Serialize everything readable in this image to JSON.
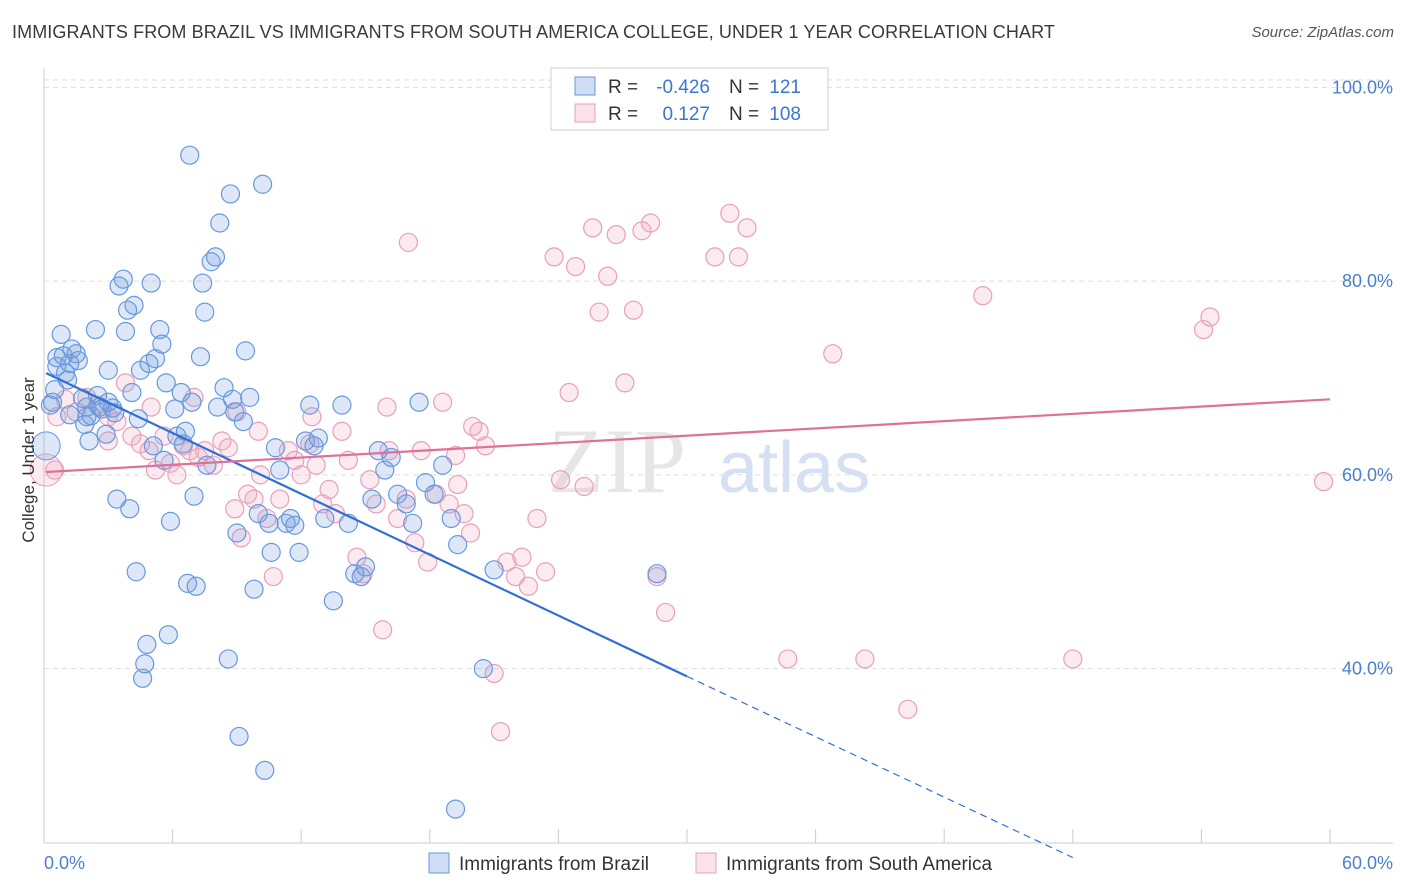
{
  "title": "IMMIGRANTS FROM BRAZIL VS IMMIGRANTS FROM SOUTH AMERICA COLLEGE, UNDER 1 YEAR CORRELATION CHART",
  "source": "Source: ZipAtlas.com",
  "watermark": {
    "zip": "ZIP",
    "atlas": "atlas"
  },
  "colors": {
    "blue": "#6699dd",
    "blue_line": "#2f6fd6",
    "blue_fill": "rgba(120,160,225,0.25)",
    "pink": "#e8a0b8",
    "pink_line": "#e0709a",
    "pink_fill": "rgba(240,170,195,0.25)",
    "axis_label": "#4a7fd0",
    "grid": "#dddddd"
  },
  "stats": [
    {
      "r_label": "R =",
      "r": "-0.426",
      "n_label": "N =",
      "n": "121"
    },
    {
      "r_label": "R =",
      "r": "0.127",
      "n_label": "N =",
      "n": "108"
    }
  ],
  "chart_data": {
    "type": "scatter",
    "title": "IMMIGRANTS FROM BRAZIL VS IMMIGRANTS FROM SOUTH AMERICA COLLEGE, UNDER 1 YEAR CORRELATION CHART",
    "xlabel": "",
    "ylabel": "College, Under 1 year",
    "xlim": [
      0,
      60
    ],
    "ylim": [
      22,
      102
    ],
    "x_tick_labels": [
      "0.0%",
      "60.0%"
    ],
    "y_ticks": [
      40,
      60,
      80,
      100
    ],
    "y_tick_labels": [
      "40.0%",
      "60.0%",
      "80.0%",
      "100.0%"
    ],
    "grid": true,
    "legend_position": "bottom",
    "series": [
      {
        "name": "Immigrants from Brazil",
        "color": "blue",
        "trend": {
          "x0": 0.1,
          "y0": 70.5,
          "x1": 30.0,
          "y1": 39.2,
          "dash_to_x": 48.0,
          "dash_to_y": 20.5
        },
        "points": [
          [
            0.3,
            67.2
          ],
          [
            0.4,
            67.5
          ],
          [
            0.5,
            68.8
          ],
          [
            0.6,
            71.2
          ],
          [
            0.6,
            72.1
          ],
          [
            0.8,
            74.5
          ],
          [
            0.9,
            72.3
          ],
          [
            1.0,
            70.5
          ],
          [
            1.1,
            69.8
          ],
          [
            1.2,
            71.5
          ],
          [
            1.3,
            73.0
          ],
          [
            1.5,
            72.5
          ],
          [
            1.6,
            71.8
          ],
          [
            1.8,
            67.9
          ],
          [
            1.9,
            65.2
          ],
          [
            2.0,
            67.0
          ],
          [
            2.1,
            63.5
          ],
          [
            2.2,
            66.1
          ],
          [
            2.4,
            75.0
          ],
          [
            2.5,
            68.2
          ],
          [
            2.6,
            67.0
          ],
          [
            2.7,
            66.8
          ],
          [
            2.9,
            64.2
          ],
          [
            3.0,
            67.5
          ],
          [
            3.0,
            70.8
          ],
          [
            3.2,
            66.9
          ],
          [
            3.3,
            66.4
          ],
          [
            3.4,
            57.5
          ],
          [
            3.5,
            79.5
          ],
          [
            3.7,
            80.2
          ],
          [
            3.8,
            74.8
          ],
          [
            3.9,
            77.0
          ],
          [
            4.0,
            56.5
          ],
          [
            4.1,
            68.5
          ],
          [
            4.2,
            77.5
          ],
          [
            4.3,
            50.0
          ],
          [
            4.4,
            65.8
          ],
          [
            4.5,
            70.8
          ],
          [
            4.6,
            39.0
          ],
          [
            4.7,
            40.5
          ],
          [
            4.8,
            42.5
          ],
          [
            4.9,
            71.5
          ],
          [
            5.0,
            79.8
          ],
          [
            5.1,
            63.0
          ],
          [
            5.2,
            72.0
          ],
          [
            5.4,
            75.0
          ],
          [
            5.5,
            73.5
          ],
          [
            5.6,
            61.5
          ],
          [
            5.7,
            69.5
          ],
          [
            5.8,
            43.5
          ],
          [
            5.9,
            55.2
          ],
          [
            6.1,
            66.8
          ],
          [
            6.2,
            64.0
          ],
          [
            6.4,
            68.5
          ],
          [
            6.5,
            63.2
          ],
          [
            6.6,
            64.5
          ],
          [
            6.7,
            48.8
          ],
          [
            6.8,
            93.0
          ],
          [
            6.9,
            67.5
          ],
          [
            7.0,
            57.8
          ],
          [
            7.1,
            48.5
          ],
          [
            7.3,
            72.2
          ],
          [
            7.4,
            79.8
          ],
          [
            7.5,
            76.8
          ],
          [
            7.6,
            61.0
          ],
          [
            7.8,
            82.0
          ],
          [
            8.0,
            82.5
          ],
          [
            8.1,
            67.0
          ],
          [
            8.2,
            86.0
          ],
          [
            8.4,
            69.0
          ],
          [
            8.6,
            41.0
          ],
          [
            8.7,
            89.0
          ],
          [
            8.8,
            67.8
          ],
          [
            8.9,
            66.5
          ],
          [
            9.0,
            54.0
          ],
          [
            9.1,
            33.0
          ],
          [
            9.3,
            65.5
          ],
          [
            9.4,
            72.8
          ],
          [
            9.6,
            68.0
          ],
          [
            9.8,
            48.2
          ],
          [
            10.0,
            56.0
          ],
          [
            10.2,
            90.0
          ],
          [
            10.3,
            29.5
          ],
          [
            10.5,
            55.0
          ],
          [
            10.6,
            52.0
          ],
          [
            10.8,
            62.8
          ],
          [
            11.0,
            60.5
          ],
          [
            11.3,
            55.0
          ],
          [
            11.5,
            55.5
          ],
          [
            11.7,
            54.8
          ],
          [
            11.9,
            52.0
          ],
          [
            12.2,
            63.5
          ],
          [
            12.4,
            67.2
          ],
          [
            12.6,
            63.0
          ],
          [
            12.8,
            63.8
          ],
          [
            13.1,
            55.5
          ],
          [
            13.5,
            47.0
          ],
          [
            13.9,
            67.2
          ],
          [
            14.2,
            55.0
          ],
          [
            14.5,
            49.8
          ],
          [
            14.8,
            49.5
          ],
          [
            15.0,
            50.5
          ],
          [
            15.3,
            57.5
          ],
          [
            15.6,
            62.5
          ],
          [
            15.9,
            60.5
          ],
          [
            16.2,
            61.8
          ],
          [
            16.5,
            58.0
          ],
          [
            16.9,
            57.0
          ],
          [
            17.2,
            55.0
          ],
          [
            17.5,
            67.5
          ],
          [
            17.8,
            59.2
          ],
          [
            18.2,
            58.0
          ],
          [
            18.6,
            61.0
          ],
          [
            19.0,
            55.5
          ],
          [
            19.3,
            52.8
          ],
          [
            19.2,
            25.5
          ],
          [
            20.5,
            40.0
          ],
          [
            21.0,
            50.2
          ],
          [
            28.6,
            49.8
          ],
          [
            1.2,
            66.2
          ],
          [
            2.0,
            66.0
          ]
        ]
      },
      {
        "name": "Immigrants from South America",
        "color": "pink",
        "trend": {
          "x0": 0.1,
          "y0": 60.3,
          "x1": 60.0,
          "y1": 67.8
        },
        "points": [
          [
            0.5,
            60.5
          ],
          [
            0.6,
            66.0
          ],
          [
            1.0,
            67.8
          ],
          [
            1.5,
            66.5
          ],
          [
            2.0,
            68.0
          ],
          [
            2.5,
            67.2
          ],
          [
            3.0,
            66.0
          ],
          [
            3.4,
            65.5
          ],
          [
            3.8,
            69.5
          ],
          [
            4.1,
            64.0
          ],
          [
            4.5,
            63.2
          ],
          [
            4.9,
            62.5
          ],
          [
            5.2,
            60.5
          ],
          [
            5.6,
            64.0
          ],
          [
            5.9,
            61.2
          ],
          [
            6.2,
            60.0
          ],
          [
            6.5,
            63.0
          ],
          [
            6.8,
            62.5
          ],
          [
            7.2,
            61.8
          ],
          [
            7.5,
            62.5
          ],
          [
            7.9,
            61.0
          ],
          [
            8.3,
            63.5
          ],
          [
            8.6,
            62.8
          ],
          [
            8.9,
            56.5
          ],
          [
            9.2,
            53.5
          ],
          [
            9.5,
            58.0
          ],
          [
            9.8,
            57.5
          ],
          [
            10.1,
            60.0
          ],
          [
            10.4,
            55.5
          ],
          [
            10.7,
            49.5
          ],
          [
            11.0,
            57.5
          ],
          [
            11.4,
            62.5
          ],
          [
            11.7,
            61.5
          ],
          [
            12.0,
            60.0
          ],
          [
            12.4,
            63.2
          ],
          [
            12.7,
            61.0
          ],
          [
            13.0,
            57.0
          ],
          [
            13.3,
            58.5
          ],
          [
            13.6,
            56.0
          ],
          [
            13.9,
            64.5
          ],
          [
            14.2,
            61.5
          ],
          [
            14.6,
            51.5
          ],
          [
            14.9,
            49.8
          ],
          [
            15.2,
            59.5
          ],
          [
            15.5,
            57.0
          ],
          [
            15.8,
            44.0
          ],
          [
            16.1,
            62.5
          ],
          [
            16.5,
            55.5
          ],
          [
            16.9,
            57.5
          ],
          [
            17.3,
            53.0
          ],
          [
            17.6,
            62.5
          ],
          [
            17.9,
            51.0
          ],
          [
            18.3,
            58.0
          ],
          [
            18.6,
            67.5
          ],
          [
            18.9,
            57.0
          ],
          [
            19.3,
            59.0
          ],
          [
            19.6,
            56.0
          ],
          [
            19.9,
            54.0
          ],
          [
            20.3,
            64.5
          ],
          [
            20.6,
            63.0
          ],
          [
            21.0,
            39.5
          ],
          [
            21.3,
            33.5
          ],
          [
            21.6,
            51.0
          ],
          [
            22.0,
            49.5
          ],
          [
            22.3,
            51.5
          ],
          [
            22.6,
            48.5
          ],
          [
            23.0,
            55.5
          ],
          [
            23.4,
            50.0
          ],
          [
            23.8,
            82.5
          ],
          [
            24.1,
            59.5
          ],
          [
            24.5,
            68.5
          ],
          [
            24.8,
            81.5
          ],
          [
            25.2,
            58.8
          ],
          [
            25.6,
            85.5
          ],
          [
            25.9,
            76.8
          ],
          [
            26.3,
            80.5
          ],
          [
            26.7,
            84.8
          ],
          [
            27.1,
            69.5
          ],
          [
            27.5,
            77.0
          ],
          [
            27.9,
            85.2
          ],
          [
            28.3,
            86.0
          ],
          [
            28.6,
            49.5
          ],
          [
            29.0,
            45.8
          ],
          [
            31.3,
            82.5
          ],
          [
            32.0,
            87.0
          ],
          [
            32.4,
            82.5
          ],
          [
            32.8,
            85.5
          ],
          [
            34.7,
            41.0
          ],
          [
            36.8,
            72.5
          ],
          [
            38.3,
            41.0
          ],
          [
            40.3,
            35.8
          ],
          [
            43.8,
            78.5
          ],
          [
            48.0,
            41.0
          ],
          [
            54.1,
            75.0
          ],
          [
            54.4,
            76.3
          ],
          [
            59.7,
            59.3
          ],
          [
            30.2,
            100.0
          ],
          [
            30.4,
            100.0
          ],
          [
            17.0,
            84.0
          ],
          [
            19.2,
            62.0
          ],
          [
            20.0,
            65.0
          ],
          [
            7.0,
            68.0
          ],
          [
            9.0,
            66.5
          ],
          [
            5.0,
            67.0
          ],
          [
            10.0,
            64.5
          ],
          [
            12.5,
            66.0
          ],
          [
            16.0,
            67.0
          ],
          [
            3.0,
            63.5
          ]
        ]
      }
    ]
  },
  "legend": {
    "items": [
      {
        "label": "Immigrants from Brazil"
      },
      {
        "label": "Immigrants from South America"
      }
    ]
  }
}
